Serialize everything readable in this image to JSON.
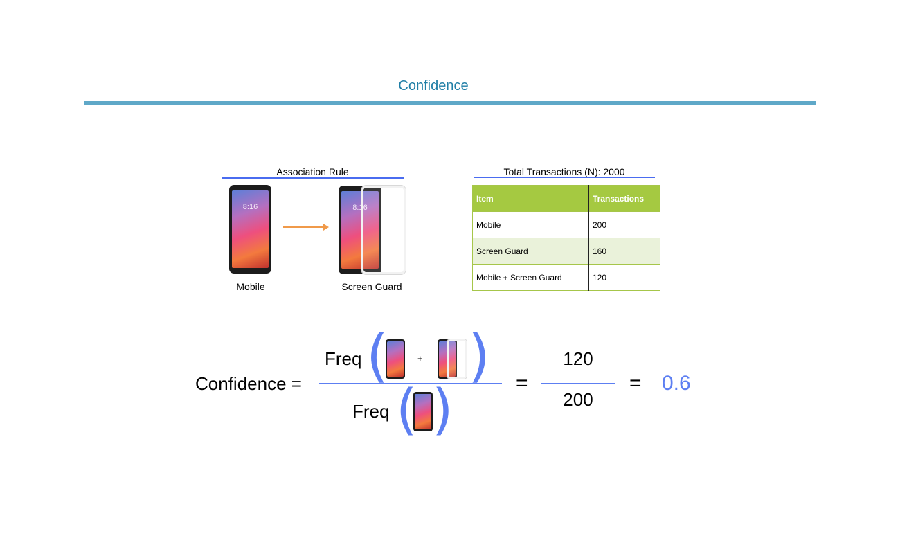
{
  "page": {
    "title": "Confidence"
  },
  "association": {
    "title": "Association Rule",
    "antecedent_label": "Mobile",
    "consequent_label": "Screen Guard",
    "icons": [
      "mobile-phone-icon",
      "arrow-right-icon",
      "screen-guard-icon"
    ]
  },
  "transactions": {
    "title": "Total Transactions (N): 2000",
    "headers": [
      "Item",
      "Transactions"
    ],
    "rows": [
      [
        "Mobile",
        "200"
      ],
      [
        "Screen Guard",
        "160"
      ],
      [
        "Mobile + Screen Guard",
        "120"
      ]
    ],
    "colors": {
      "header_bg": "#a5c941",
      "alt_row_bg": "#eaf2da"
    }
  },
  "formula": {
    "lhs": "Confidence =",
    "numerator_func": "Freq",
    "denominator_func": "Freq",
    "plus": "+",
    "equals": "=",
    "numerator_value": "120",
    "denominator_value": "200",
    "result": "0.6",
    "accent_color": "#5d7ff2"
  }
}
